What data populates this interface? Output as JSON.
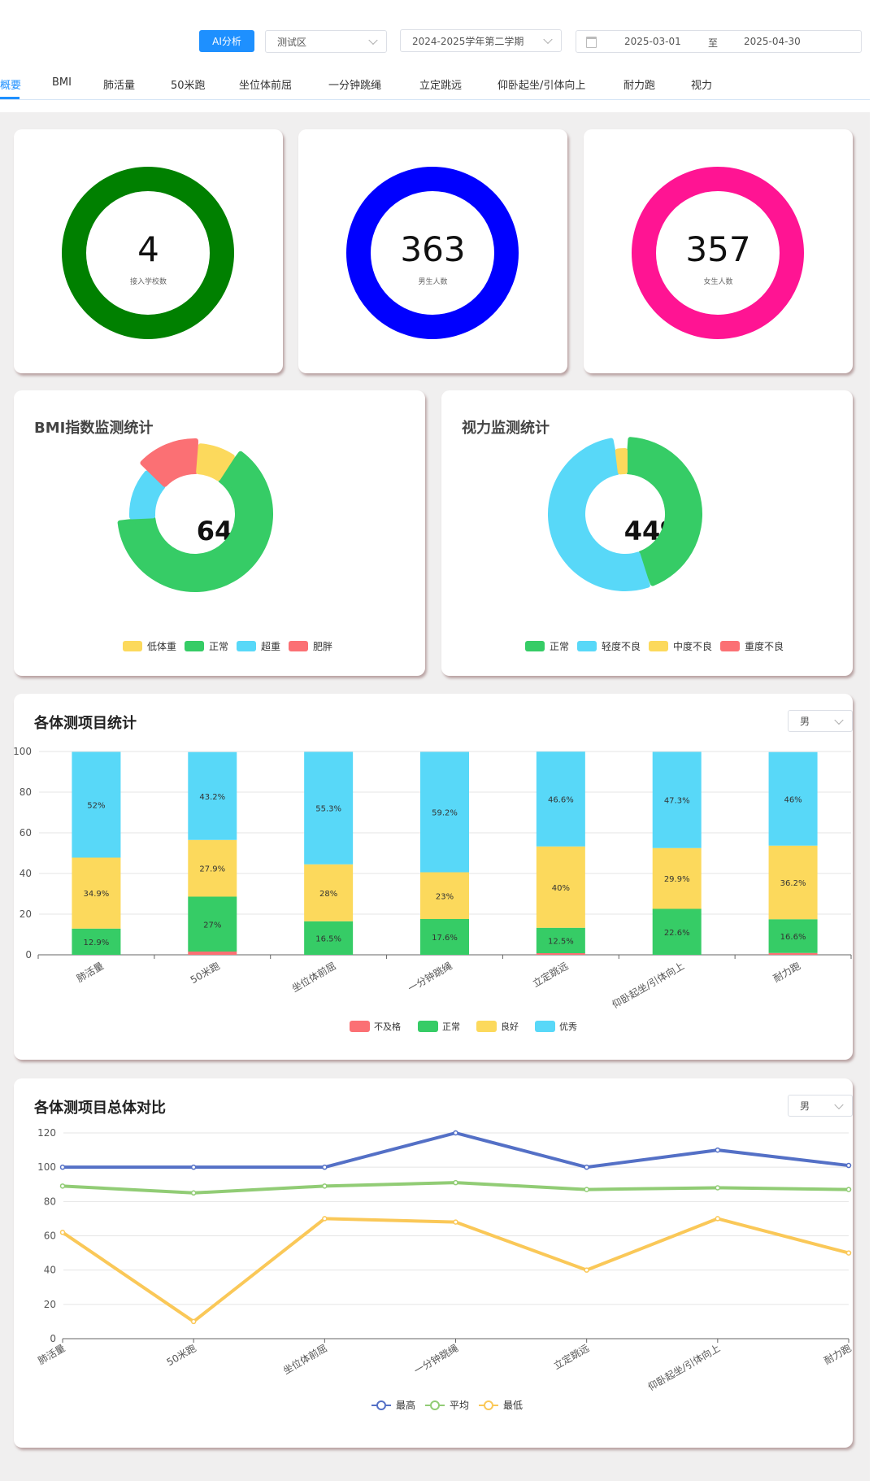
{
  "toolbar": {
    "ai_button": "AI分析",
    "district": "测试区",
    "term": "2024-2025学年第二学期",
    "date_start": "2025-03-01",
    "date_sep": "至",
    "date_end": "2025-04-30"
  },
  "tabs": [
    {
      "label": "概要",
      "active": true
    },
    {
      "label": "BMI"
    },
    {
      "label": "肺活量"
    },
    {
      "label": "50米跑"
    },
    {
      "label": "坐位体前屈"
    },
    {
      "label": "一分钟跳绳"
    },
    {
      "label": "立定跳远"
    },
    {
      "label": "仰卧起坐/引体向上"
    },
    {
      "label": "耐力跑"
    },
    {
      "label": "视力"
    }
  ],
  "stats": [
    {
      "value": "4",
      "label": "接入学校数",
      "color": "#008000"
    },
    {
      "value": "363",
      "label": "男生人数",
      "color": "#0000ff"
    },
    {
      "value": "357",
      "label": "女生人数",
      "color": "#ff1493"
    }
  ],
  "bmi": {
    "title": "BMI指数监测统计",
    "center": "64%",
    "legend": [
      {
        "label": "低体重",
        "color": "#fcd95c"
      },
      {
        "label": "正常",
        "color": "#36cc66"
      },
      {
        "label": "超重",
        "color": "#58d8f8"
      },
      {
        "label": "肥胖",
        "color": "#fb7074"
      }
    ]
  },
  "vision": {
    "title": "视力监测统计",
    "center": "44%",
    "legend": [
      {
        "label": "正常",
        "color": "#36cc66"
      },
      {
        "label": "轻度不良",
        "color": "#58d8f8"
      },
      {
        "label": "中度不良",
        "color": "#fcd95c"
      },
      {
        "label": "重度不良",
        "color": "#fb7074"
      }
    ]
  },
  "items_chart": {
    "title": "各体测项目统计",
    "gender": "男"
  },
  "compare_chart": {
    "title": "各体测项目总体对比",
    "gender": "男"
  },
  "chart_data": [
    {
      "type": "pie",
      "chart": "bmi",
      "categories": [
        "正常",
        "超重",
        "肥胖",
        "低体重"
      ],
      "values": [
        64,
        13,
        14,
        9
      ],
      "center_label": "64%"
    },
    {
      "type": "pie",
      "chart": "vision",
      "categories": [
        "正常",
        "轻度不良",
        "中度不良"
      ],
      "values": [
        44,
        53,
        3
      ],
      "center_label": "44%"
    },
    {
      "type": "bar",
      "chart": "items",
      "stacked": true,
      "categories": [
        "肺活量",
        "50米跑",
        "坐位体前屈",
        "一分钟跳绳",
        "立定跳远",
        "仰卧起坐/引体向上",
        "耐力跑"
      ],
      "series": [
        {
          "name": "不及格",
          "color": "#fb7074",
          "values": [
            0,
            1.6,
            0,
            0,
            0.8,
            0,
            0.9
          ],
          "labels": [
            "0%",
            "1.6%",
            "0%",
            "0%",
            "0.8%",
            "0%",
            "0.9%"
          ]
        },
        {
          "name": "正常",
          "color": "#36cc66",
          "values": [
            12.9,
            27,
            16.5,
            17.6,
            12.5,
            22.6,
            16.6
          ],
          "labels": [
            "12.9%",
            "27%",
            "16.5%",
            "17.6%",
            "12.5%",
            "22.6%",
            "16.6%"
          ]
        },
        {
          "name": "良好",
          "color": "#fcd95c",
          "values": [
            34.9,
            27.9,
            28,
            23,
            40,
            29.9,
            36.2
          ],
          "labels": [
            "34.9%",
            "27.9%",
            "28%",
            "23%",
            "40%",
            "29.9%",
            "36.2%"
          ]
        },
        {
          "name": "优秀",
          "color": "#58d8f8",
          "values": [
            52,
            43.2,
            55.3,
            59.2,
            46.6,
            47.3,
            46
          ],
          "labels": [
            "52%",
            "43.2%",
            "55.3%",
            "59.2%",
            "46.6%",
            "47.3%",
            "46%"
          ]
        }
      ],
      "ylim": [
        0,
        100
      ],
      "yticks": [
        "0",
        "20",
        "40",
        "60",
        "80",
        "100"
      ],
      "legend_position": "bottom"
    },
    {
      "type": "line",
      "chart": "compare",
      "categories": [
        "肺活量",
        "50米跑",
        "坐位体前屈",
        "一分钟跳绳",
        "立定跳远",
        "仰卧起坐/引体向上",
        "耐力跑"
      ],
      "series": [
        {
          "name": "最高",
          "color": "#5470c6",
          "values": [
            100,
            100,
            100,
            120,
            100,
            110,
            101
          ]
        },
        {
          "name": "平均",
          "color": "#91cc75",
          "values": [
            89,
            85,
            89,
            91,
            87,
            88,
            87
          ]
        },
        {
          "name": "最低",
          "color": "#fac858",
          "values": [
            62,
            10,
            70,
            68,
            40,
            70,
            50
          ]
        }
      ],
      "ylim": [
        0,
        120
      ],
      "yticks": [
        "0",
        "20",
        "40",
        "60",
        "80",
        "100",
        "120"
      ],
      "legend_position": "bottom"
    }
  ]
}
